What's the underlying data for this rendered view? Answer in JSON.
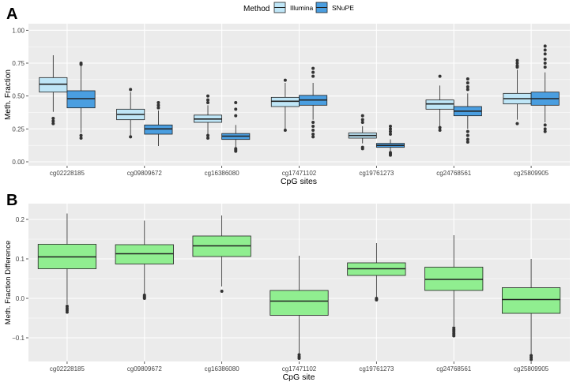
{
  "colors": {
    "panel_bg": "#ebebeb",
    "grid": "#ffffff",
    "illumina": "#bfe6f7",
    "snupe": "#4a9ee0",
    "diff": "#90ee90",
    "stroke": "#222222"
  },
  "legend": {
    "title": "Method",
    "entries": [
      "Illumina",
      "SNuPE"
    ]
  },
  "chart_data": [
    {
      "panel_label": "A",
      "type": "boxplot",
      "title": "",
      "xlabel": "CpG sites",
      "ylabel": "Meth. Fraction",
      "ylim": [
        -0.03,
        1.05
      ],
      "yticks": [
        0.0,
        0.25,
        0.5,
        0.75,
        1.0
      ],
      "ytick_labels": [
        "0.00",
        "0.25",
        "0.50",
        "0.75",
        "1.00"
      ],
      "categories": [
        "cg02228185",
        "cg09809672",
        "cg16386080",
        "cg17471102",
        "cg19761273",
        "cg24768561",
        "cg25809905"
      ],
      "series": [
        {
          "name": "Illumina",
          "boxes": [
            {
              "low": 0.38,
              "q1": 0.53,
              "median": 0.59,
              "q3": 0.64,
              "high": 0.81,
              "outliers": [
                0.33,
                0.31,
                0.29
              ]
            },
            {
              "low": 0.19,
              "q1": 0.32,
              "median": 0.36,
              "q3": 0.4,
              "high": 0.53,
              "outliers": [
                0.55,
                0.19
              ]
            },
            {
              "low": 0.21,
              "q1": 0.3,
              "median": 0.325,
              "q3": 0.355,
              "high": 0.43,
              "outliers": [
                0.5,
                0.47,
                0.45,
                0.2,
                0.18
              ]
            },
            {
              "low": 0.25,
              "q1": 0.42,
              "median": 0.46,
              "q3": 0.49,
              "high": 0.6,
              "outliers": [
                0.62,
                0.24
              ]
            },
            {
              "low": 0.14,
              "q1": 0.18,
              "median": 0.2,
              "q3": 0.22,
              "high": 0.27,
              "outliers": [
                0.35,
                0.32,
                0.3,
                0.11,
                0.1
              ]
            },
            {
              "low": 0.27,
              "q1": 0.4,
              "median": 0.44,
              "q3": 0.47,
              "high": 0.58,
              "outliers": [
                0.65,
                0.26,
                0.24
              ]
            },
            {
              "low": 0.32,
              "q1": 0.44,
              "median": 0.48,
              "q3": 0.52,
              "high": 0.7,
              "outliers": [
                0.77,
                0.75,
                0.73,
                0.72,
                0.29
              ]
            }
          ]
        },
        {
          "name": "SNuPE",
          "boxes": [
            {
              "low": 0.22,
              "q1": 0.41,
              "median": 0.48,
              "q3": 0.54,
              "high": 0.73,
              "outliers": [
                0.75,
                0.74,
                0.2,
                0.18
              ]
            },
            {
              "low": 0.12,
              "q1": 0.21,
              "median": 0.25,
              "q3": 0.28,
              "high": 0.39,
              "outliers": [
                0.45,
                0.43,
                0.41
              ]
            },
            {
              "low": 0.11,
              "q1": 0.17,
              "median": 0.195,
              "q3": 0.215,
              "high": 0.28,
              "outliers": [
                0.45,
                0.4,
                0.35,
                0.1,
                0.09,
                0.08
              ]
            },
            {
              "low": 0.32,
              "q1": 0.43,
              "median": 0.47,
              "q3": 0.505,
              "high": 0.6,
              "outliers": [
                0.71,
                0.68,
                0.65,
                0.3,
                0.27,
                0.24,
                0.21,
                0.19
              ]
            },
            {
              "low": 0.08,
              "q1": 0.11,
              "median": 0.125,
              "q3": 0.14,
              "high": 0.17,
              "outliers": [
                0.27,
                0.25,
                0.23,
                0.21,
                0.07,
                0.06,
                0.05
              ]
            },
            {
              "low": 0.25,
              "q1": 0.35,
              "median": 0.385,
              "q3": 0.42,
              "high": 0.52,
              "outliers": [
                0.63,
                0.6,
                0.57,
                0.55,
                0.23,
                0.2,
                0.17,
                0.15
              ]
            },
            {
              "low": 0.3,
              "q1": 0.43,
              "median": 0.48,
              "q3": 0.53,
              "high": 0.68,
              "outliers": [
                0.88,
                0.85,
                0.82,
                0.78,
                0.75,
                0.72,
                0.28,
                0.25,
                0.23
              ]
            }
          ]
        }
      ]
    },
    {
      "panel_label": "B",
      "type": "boxplot",
      "title": "",
      "xlabel": "CpG site",
      "ylabel": "Meth. Fraction Difference",
      "ylim": [
        -0.16,
        0.24
      ],
      "yticks": [
        -0.1,
        0.0,
        0.1,
        0.2
      ],
      "ytick_labels": [
        "−0.1",
        "0.0",
        "0.1",
        "0.2"
      ],
      "categories": [
        "cg02228185",
        "cg09809672",
        "cg16386080",
        "cg17471102",
        "cg19761273",
        "cg24768561",
        "cg25809905"
      ],
      "series": [
        {
          "name": "Difference",
          "boxes": [
            {
              "low": -0.015,
              "q1": 0.075,
              "median": 0.105,
              "q3": 0.137,
              "high": 0.215,
              "outliers": [
                -0.02,
                -0.025,
                -0.03,
                -0.035
              ]
            },
            {
              "low": 0.01,
              "q1": 0.087,
              "median": 0.113,
              "q3": 0.136,
              "high": 0.197,
              "outliers": [
                0.008,
                0.005,
                0.002,
                0.0
              ]
            },
            {
              "low": 0.03,
              "q1": 0.106,
              "median": 0.133,
              "q3": 0.158,
              "high": 0.21,
              "outliers": [
                0.018
              ]
            },
            {
              "low": -0.14,
              "q1": -0.043,
              "median": -0.007,
              "q3": 0.02,
              "high": 0.108,
              "outliers": [
                -0.143,
                -0.148,
                -0.152
              ]
            },
            {
              "low": 0.003,
              "q1": 0.058,
              "median": 0.075,
              "q3": 0.09,
              "high": 0.14,
              "outliers": [
                0.0,
                -0.002,
                -0.004
              ]
            },
            {
              "low": -0.07,
              "q1": 0.02,
              "median": 0.048,
              "q3": 0.079,
              "high": 0.16,
              "outliers": [
                -0.075,
                -0.08,
                -0.085,
                -0.09,
                -0.095
              ]
            },
            {
              "low": -0.142,
              "q1": -0.038,
              "median": -0.003,
              "q3": 0.027,
              "high": 0.1,
              "outliers": [
                -0.145,
                -0.15,
                -0.155
              ]
            }
          ]
        }
      ]
    }
  ]
}
